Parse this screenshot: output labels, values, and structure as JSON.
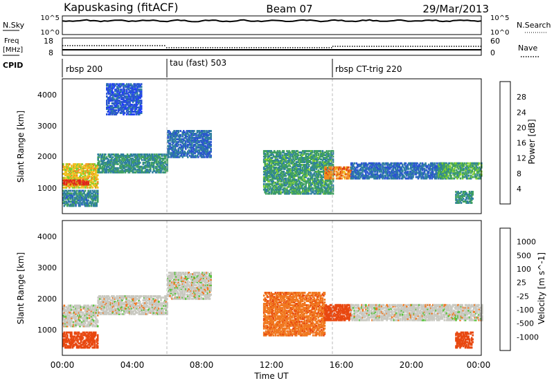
{
  "header": {
    "station": "Kapuskasing (fitACF)",
    "beam": "Beam 07",
    "date": "29/Mar/2013"
  },
  "strips": {
    "nsky": {
      "left_label": "N.Sky",
      "left_top_tick": "10^5",
      "left_bottom_tick": "10^0",
      "right_top_tick": "10^5",
      "right_bottom_tick": "10^0",
      "right_label": "N.Search"
    },
    "freq": {
      "left_label_1": "Freq",
      "left_label_2": "[MHz]",
      "left_top_tick": "18",
      "left_bottom_tick": "8",
      "right_top_tick": "60",
      "right_bottom_tick": "0",
      "right_label": "Nave"
    },
    "cpid": {
      "label": "CPID",
      "segments": [
        {
          "label": "rbsp 200",
          "start_hour": 0
        },
        {
          "label": "tau (fast) 503",
          "start_hour": 6
        },
        {
          "label": "rbsp CT-trig 220",
          "start_hour": 15.5
        }
      ]
    }
  },
  "x_axis": {
    "label": "Time UT",
    "ticks": [
      "00:00",
      "04:00",
      "08:00",
      "12:00",
      "16:00",
      "20:00",
      "00:00"
    ],
    "tick_hours": [
      0,
      4,
      8,
      12,
      16,
      20,
      24
    ],
    "range_hours": [
      0,
      24
    ]
  },
  "y_axis": {
    "label": "Slant Range [km]",
    "ticks": [
      "1000",
      "2000",
      "3000",
      "4000"
    ],
    "tick_values": [
      1000,
      2000,
      3000,
      4000
    ],
    "range_km": [
      180,
      4600
    ]
  },
  "colorbars": {
    "power": {
      "label": "Power [dB]",
      "ticks": [
        "4",
        "8",
        "12",
        "16",
        "20",
        "24",
        "28"
      ],
      "colors": [
        "#1f3cff",
        "#2a55d0",
        "#2f7fa0",
        "#3fa060",
        "#7fcf30",
        "#f0c020",
        "#f08a20",
        "#e04010",
        "#e02020"
      ]
    },
    "velocity": {
      "label": "Velocity [m s^-1]",
      "ticks": [
        "1000",
        "500",
        "100",
        "25",
        "-25",
        "-100",
        "-500",
        "-1000"
      ],
      "colors": [
        "#1a30c8",
        "#2a5ab0",
        "#3a8a6a",
        "#56c23a",
        "#c8c8c0",
        "#f0a020",
        "#f07820",
        "#e84810",
        "#e81c1c"
      ]
    }
  },
  "chart_data": {
    "type": "heatmap",
    "title": "Kapuskasing (fitACF) Beam 07 29/Mar/2013",
    "xlabel": "Time UT",
    "ylabel": "Slant Range [km]",
    "xlim": [
      0,
      24
    ],
    "ylim": [
      180,
      4600
    ],
    "panels": [
      {
        "name": "Power",
        "unit": "dB",
        "color_scale": [
          0,
          30
        ],
        "regions": [
          {
            "t0": 0.0,
            "t1": 2.0,
            "r0": 1000,
            "r1": 1800,
            "value": 18
          },
          {
            "t0": 0.0,
            "t1": 1.5,
            "r0": 1100,
            "r1": 1250,
            "value": 26
          },
          {
            "t0": 0.0,
            "t1": 2.0,
            "r0": 400,
            "r1": 900,
            "value": 9
          },
          {
            "t0": 2.0,
            "t1": 6.0,
            "r0": 1500,
            "r1": 2100,
            "value": 10
          },
          {
            "t0": 6.0,
            "t1": 8.5,
            "r0": 2000,
            "r1": 2900,
            "value": 7
          },
          {
            "t0": 2.5,
            "t1": 4.5,
            "r0": 3400,
            "r1": 4400,
            "value": 5
          },
          {
            "t0": 11.5,
            "t1": 15.5,
            "r0": 800,
            "r1": 2200,
            "value": 11
          },
          {
            "t0": 15.0,
            "t1": 16.5,
            "r0": 1300,
            "r1": 1700,
            "value": 22
          },
          {
            "t0": 16.5,
            "t1": 22.0,
            "r0": 1300,
            "r1": 1800,
            "value": 7
          },
          {
            "t0": 21.5,
            "t1": 24.0,
            "r0": 1300,
            "r1": 1800,
            "value": 12
          },
          {
            "t0": 22.5,
            "t1": 23.5,
            "r0": 500,
            "r1": 900,
            "value": 10
          }
        ]
      },
      {
        "name": "Velocity",
        "unit": "m s^-1",
        "color_scale": [
          -1000,
          1000
        ],
        "regions": [
          {
            "t0": 0.0,
            "t1": 2.0,
            "r0": 1100,
            "r1": 1800,
            "value": 0
          },
          {
            "t0": 0.0,
            "t1": 2.0,
            "r0": 400,
            "r1": 900,
            "value": -200
          },
          {
            "t0": 2.0,
            "t1": 6.0,
            "r0": 1500,
            "r1": 2100,
            "value": 0
          },
          {
            "t0": 6.0,
            "t1": 8.5,
            "r0": 2000,
            "r1": 2900,
            "value": 0
          },
          {
            "t0": 11.5,
            "t1": 15.0,
            "r0": 800,
            "r1": 2200,
            "value": -80
          },
          {
            "t0": 15.0,
            "t1": 16.5,
            "r0": 1300,
            "r1": 1800,
            "value": -400
          },
          {
            "t0": 16.5,
            "t1": 24.0,
            "r0": 1300,
            "r1": 1800,
            "value": 0
          },
          {
            "t0": 22.5,
            "t1": 23.5,
            "r0": 400,
            "r1": 900,
            "value": -300
          }
        ]
      }
    ]
  }
}
